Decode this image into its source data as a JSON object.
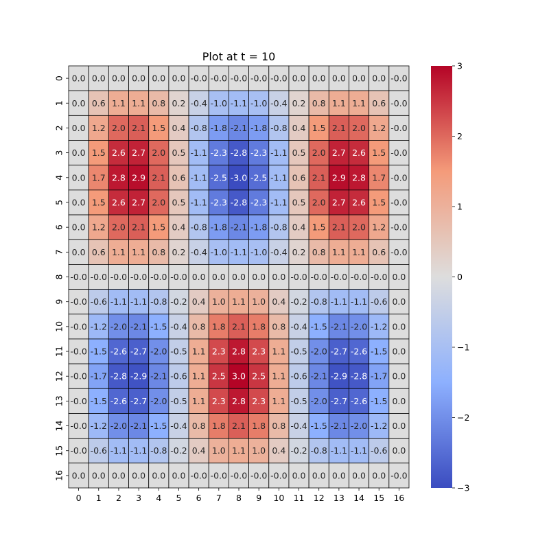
{
  "chart_data": {
    "type": "heatmap",
    "title": "Plot at t = 10",
    "xlabel": "",
    "ylabel": "",
    "x_categories": [
      "0",
      "1",
      "2",
      "3",
      "4",
      "5",
      "6",
      "7",
      "8",
      "9",
      "10",
      "11",
      "12",
      "13",
      "14",
      "15",
      "16"
    ],
    "y_categories": [
      "0",
      "1",
      "2",
      "3",
      "4",
      "5",
      "6",
      "7",
      "8",
      "9",
      "10",
      "11",
      "12",
      "13",
      "14",
      "15",
      "16"
    ],
    "colormap": "coolwarm",
    "vmin": -3,
    "vmax": 3,
    "colorbar_ticks": [
      -3,
      -2,
      -1,
      0,
      1,
      2,
      3
    ],
    "colorbar_tick_labels": [
      "−3",
      "−2",
      "−1",
      "0",
      "1",
      "2",
      "3"
    ],
    "annotation_format": "one decimal",
    "grid_line_color": "#000000",
    "values": [
      [
        "0.0",
        "0.0",
        "0.0",
        "0.0",
        "0.0",
        "0.0",
        "-0.0",
        "-0.0",
        "-0.0",
        "-0.0",
        "-0.0",
        "0.0",
        "0.0",
        "0.0",
        "0.0",
        "0.0",
        "-0.0"
      ],
      [
        "0.0",
        "0.6",
        "1.1",
        "1.1",
        "0.8",
        "0.2",
        "-0.4",
        "-1.0",
        "-1.1",
        "-1.0",
        "-0.4",
        "0.2",
        "0.8",
        "1.1",
        "1.1",
        "0.6",
        "-0.0"
      ],
      [
        "0.0",
        "1.2",
        "2.0",
        "2.1",
        "1.5",
        "0.4",
        "-0.8",
        "-1.8",
        "-2.1",
        "-1.8",
        "-0.8",
        "0.4",
        "1.5",
        "2.1",
        "2.0",
        "1.2",
        "-0.0"
      ],
      [
        "0.0",
        "1.5",
        "2.6",
        "2.7",
        "2.0",
        "0.5",
        "-1.1",
        "-2.3",
        "-2.8",
        "-2.3",
        "-1.1",
        "0.5",
        "2.0",
        "2.7",
        "2.6",
        "1.5",
        "-0.0"
      ],
      [
        "0.0",
        "1.7",
        "2.8",
        "2.9",
        "2.1",
        "0.6",
        "-1.1",
        "-2.5",
        "-3.0",
        "-2.5",
        "-1.1",
        "0.6",
        "2.1",
        "2.9",
        "2.8",
        "1.7",
        "-0.0"
      ],
      [
        "0.0",
        "1.5",
        "2.6",
        "2.7",
        "2.0",
        "0.5",
        "-1.1",
        "-2.3",
        "-2.8",
        "-2.3",
        "-1.1",
        "0.5",
        "2.0",
        "2.7",
        "2.6",
        "1.5",
        "-0.0"
      ],
      [
        "0.0",
        "1.2",
        "2.0",
        "2.1",
        "1.5",
        "0.4",
        "-0.8",
        "-1.8",
        "-2.1",
        "-1.8",
        "-0.8",
        "0.4",
        "1.5",
        "2.1",
        "2.0",
        "1.2",
        "-0.0"
      ],
      [
        "0.0",
        "0.6",
        "1.1",
        "1.1",
        "0.8",
        "0.2",
        "-0.4",
        "-1.0",
        "-1.1",
        "-1.0",
        "-0.4",
        "0.2",
        "0.8",
        "1.1",
        "1.1",
        "0.6",
        "-0.0"
      ],
      [
        "-0.0",
        "-0.0",
        "-0.0",
        "-0.0",
        "-0.0",
        "-0.0",
        "0.0",
        "0.0",
        "0.0",
        "0.0",
        "0.0",
        "-0.0",
        "-0.0",
        "-0.0",
        "-0.0",
        "-0.0",
        "0.0"
      ],
      [
        "-0.0",
        "-0.6",
        "-1.1",
        "-1.1",
        "-0.8",
        "-0.2",
        "0.4",
        "1.0",
        "1.1",
        "1.0",
        "0.4",
        "-0.2",
        "-0.8",
        "-1.1",
        "-1.1",
        "-0.6",
        "0.0"
      ],
      [
        "-0.0",
        "-1.2",
        "-2.0",
        "-2.1",
        "-1.5",
        "-0.4",
        "0.8",
        "1.8",
        "2.1",
        "1.8",
        "0.8",
        "-0.4",
        "-1.5",
        "-2.1",
        "-2.0",
        "-1.2",
        "0.0"
      ],
      [
        "-0.0",
        "-1.5",
        "-2.6",
        "-2.7",
        "-2.0",
        "-0.5",
        "1.1",
        "2.3",
        "2.8",
        "2.3",
        "1.1",
        "-0.5",
        "-2.0",
        "-2.7",
        "-2.6",
        "-1.5",
        "0.0"
      ],
      [
        "-0.0",
        "-1.7",
        "-2.8",
        "-2.9",
        "-2.1",
        "-0.6",
        "1.1",
        "2.5",
        "3.0",
        "2.5",
        "1.1",
        "-0.6",
        "-2.1",
        "-2.9",
        "-2.8",
        "-1.7",
        "0.0"
      ],
      [
        "-0.0",
        "-1.5",
        "-2.6",
        "-2.7",
        "-2.0",
        "-0.5",
        "1.1",
        "2.3",
        "2.8",
        "2.3",
        "1.1",
        "-0.5",
        "-2.0",
        "-2.7",
        "-2.6",
        "-1.5",
        "0.0"
      ],
      [
        "-0.0",
        "-1.2",
        "-2.0",
        "-2.1",
        "-1.5",
        "-0.4",
        "0.8",
        "1.8",
        "2.1",
        "1.8",
        "0.8",
        "-0.4",
        "-1.5",
        "-2.1",
        "-2.0",
        "-1.2",
        "0.0"
      ],
      [
        "-0.0",
        "-0.6",
        "-1.1",
        "-1.1",
        "-0.8",
        "-0.2",
        "0.4",
        "1.0",
        "1.1",
        "1.0",
        "0.4",
        "-0.2",
        "-0.8",
        "-1.1",
        "-1.1",
        "-0.6",
        "0.0"
      ],
      [
        "0.0",
        "0.0",
        "0.0",
        "0.0",
        "0.0",
        "0.0",
        "-0.0",
        "-0.0",
        "-0.0",
        "-0.0",
        "-0.0",
        "0.0",
        "0.0",
        "0.0",
        "0.0",
        "0.0",
        "-0.0"
      ]
    ]
  }
}
